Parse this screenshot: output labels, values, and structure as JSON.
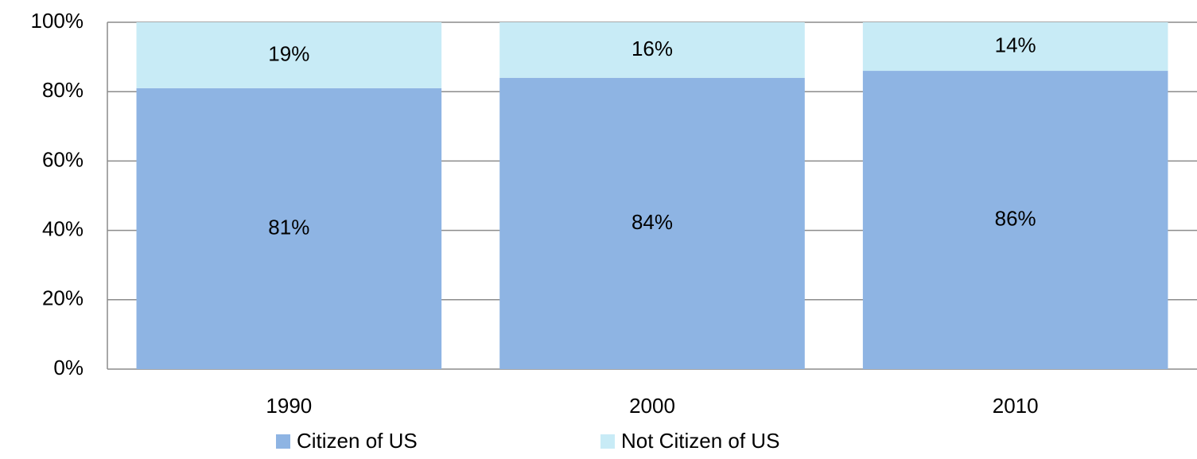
{
  "chart_data": {
    "type": "bar",
    "stacked": true,
    "categories": [
      "1990",
      "2000",
      "2010"
    ],
    "series": [
      {
        "name": "Citizen of US",
        "color": "#8eb4e3",
        "values": [
          81,
          84,
          86
        ],
        "value_labels": [
          "81%",
          "84%",
          "86%"
        ]
      },
      {
        "name": "Not Citizen of US",
        "color": "#c8ebf6",
        "values": [
          19,
          16,
          14
        ],
        "value_labels": [
          "19%",
          "16%",
          "14%"
        ]
      }
    ],
    "ylim": [
      0,
      100
    ],
    "yticks": [
      {
        "value": 0,
        "label": "0%"
      },
      {
        "value": 20,
        "label": "20%"
      },
      {
        "value": 40,
        "label": "40%"
      },
      {
        "value": 60,
        "label": "60%"
      },
      {
        "value": 80,
        "label": "80%"
      },
      {
        "value": 100,
        "label": "100%"
      }
    ],
    "grid": true,
    "legend": "bottom"
  }
}
